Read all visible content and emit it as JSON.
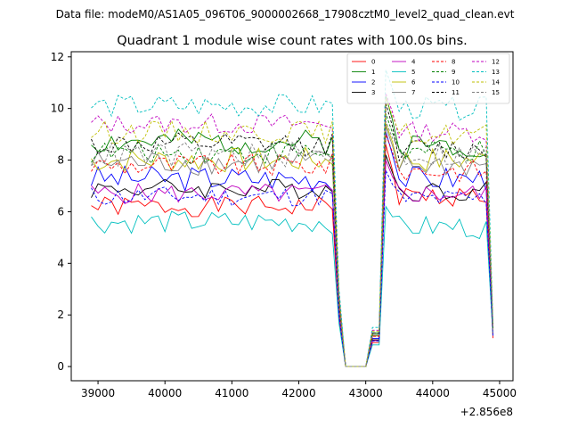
{
  "figure": {
    "suptitle": "Data file: modeM0/AS1A05_096T06_9000002668_17908cztM0_level2_quad_clean.evt",
    "offset_label": "+2.856e8"
  },
  "chart_data": {
    "type": "line",
    "title": "Quadrant 1 module wise count rates with 100.0s bins.",
    "xlabel": "",
    "ylabel": "",
    "xlim": [
      38600,
      45200
    ],
    "ylim": [
      -0.55,
      12.2
    ],
    "x_offset": 285600000,
    "xticks": [
      39000,
      40000,
      41000,
      42000,
      43000,
      44000,
      45000
    ],
    "xtick_labels": [
      "39000",
      "40000",
      "41000",
      "42000",
      "43000",
      "44000",
      "45000"
    ],
    "yticks": [
      0,
      2,
      4,
      6,
      8,
      10,
      12
    ],
    "ytick_labels": [
      "0",
      "2",
      "4",
      "6",
      "8",
      "10",
      "12"
    ],
    "legend_location": "upper right",
    "series": [
      {
        "name": "0",
        "color": "#ff0000",
        "dash": "solid",
        "base": 6.2,
        "amp": 0.4,
        "seed": 1,
        "p2": 8.6,
        "p3": 6.6,
        "end": 1.1
      },
      {
        "name": "1",
        "color": "#008000",
        "dash": "solid",
        "base": 8.7,
        "amp": 0.5,
        "seed": 2,
        "p2": 10.5,
        "p3": 8.6,
        "end": 1.5
      },
      {
        "name": "2",
        "color": "#0000ff",
        "dash": "solid",
        "base": 7.3,
        "amp": 0.5,
        "seed": 3,
        "p2": 9.1,
        "p3": 7.3,
        "end": 1.3
      },
      {
        "name": "3",
        "color": "#000000",
        "dash": "solid",
        "base": 6.9,
        "amp": 0.4,
        "seed": 4,
        "p2": 8.2,
        "p3": 6.8,
        "end": 1.4
      },
      {
        "name": "4",
        "color": "#bf00bf",
        "dash": "solid",
        "base": 6.7,
        "amp": 0.4,
        "seed": 5,
        "p2": 8.0,
        "p3": 6.7,
        "end": 1.3
      },
      {
        "name": "5",
        "color": "#00bfbf",
        "dash": "solid",
        "base": 5.6,
        "amp": 0.45,
        "seed": 6,
        "p2": 6.2,
        "p3": 5.4,
        "end": 1.2
      },
      {
        "name": "6",
        "color": "#bfbf00",
        "dash": "solid",
        "base": 8.0,
        "amp": 0.5,
        "seed": 7,
        "p2": 9.4,
        "p3": 8.0,
        "end": 1.5
      },
      {
        "name": "7",
        "color": "#808080",
        "dash": "solid",
        "base": 7.9,
        "amp": 0.5,
        "seed": 8,
        "p2": 9.3,
        "p3": 7.8,
        "end": 1.4
      },
      {
        "name": "8",
        "color": "#ff0000",
        "dash": "dashed",
        "base": 7.8,
        "amp": 0.45,
        "seed": 9,
        "p2": 9.0,
        "p3": 7.6,
        "end": 1.3
      },
      {
        "name": "9",
        "color": "#008000",
        "dash": "dashed",
        "base": 8.3,
        "amp": 0.45,
        "seed": 10,
        "p2": 9.8,
        "p3": 8.3,
        "end": 1.5
      },
      {
        "name": "10",
        "color": "#0000ff",
        "dash": "dashed",
        "base": 6.6,
        "amp": 0.4,
        "seed": 11,
        "p2": 7.6,
        "p3": 6.5,
        "end": 1.2
      },
      {
        "name": "11",
        "color": "#000000",
        "dash": "dashed",
        "base": 8.6,
        "amp": 0.45,
        "seed": 12,
        "p2": 10.2,
        "p3": 8.4,
        "end": 1.5
      },
      {
        "name": "12",
        "color": "#bf00bf",
        "dash": "dashed",
        "base": 9.4,
        "amp": 0.4,
        "seed": 13,
        "p2": 10.6,
        "p3": 9.1,
        "end": 1.6
      },
      {
        "name": "13",
        "color": "#00bfbf",
        "dash": "dashed",
        "base": 10.1,
        "amp": 0.45,
        "seed": 14,
        "p2": 11.5,
        "p3": 10.0,
        "end": 1.7
      },
      {
        "name": "14",
        "color": "#bfbf00",
        "dash": "dashed",
        "base": 9.1,
        "amp": 0.45,
        "seed": 15,
        "p2": 10.4,
        "p3": 9.0,
        "end": 1.6
      },
      {
        "name": "15",
        "color": "#808080",
        "dash": "dashed",
        "base": 8.2,
        "amp": 0.5,
        "seed": 16,
        "p2": 9.5,
        "p3": 8.2,
        "end": 1.4
      }
    ],
    "x_range": [
      38900,
      44900
    ],
    "bin_size": 100,
    "gap_start": 42600,
    "gap_zero_start": 42700,
    "gap_zero_end": 43000,
    "gap_end": 43300
  }
}
